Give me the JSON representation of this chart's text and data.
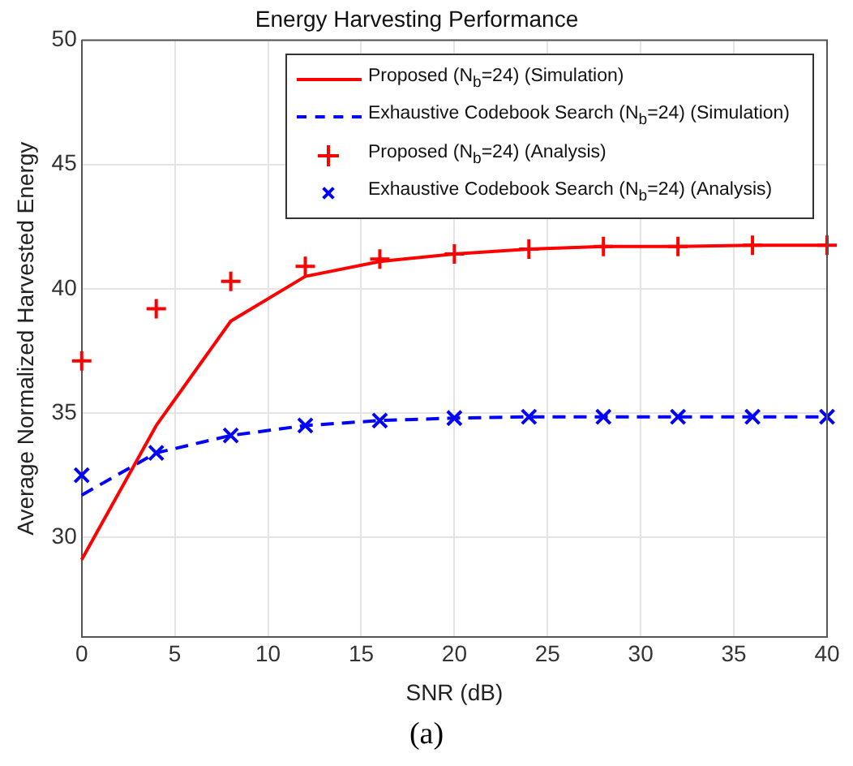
{
  "chart_data": {
    "type": "line",
    "title": "Energy Harvesting Performance",
    "xlabel": "SNR (dB)",
    "ylabel": "Average Normalized Harvested Energy",
    "x": [
      0,
      4,
      8,
      12,
      16,
      20,
      24,
      28,
      32,
      36,
      40
    ],
    "series": [
      {
        "name": "Proposed (N$_{b}$=24) (Simulation)",
        "color": "#ff0000",
        "line_style": "solid",
        "marker": "none",
        "values": [
          29.1,
          34.5,
          38.7,
          40.5,
          41.1,
          41.4,
          41.6,
          41.7,
          41.7,
          41.75,
          41.75
        ]
      },
      {
        "name": "Exhaustive Codebook Search (N$_{b}$=24) (Simulation)",
        "color": "#0000ff",
        "line_style": "dashed",
        "marker": "none",
        "values": [
          31.7,
          33.4,
          34.1,
          34.5,
          34.7,
          34.8,
          34.85,
          34.85,
          34.85,
          34.85,
          34.85
        ]
      },
      {
        "name": "Proposed (N$_{b}$=24) (Analysis)",
        "type": "scatter",
        "color": "#ff0000",
        "marker": "cross",
        "values": [
          37.1,
          39.2,
          40.3,
          40.9,
          41.2,
          41.4,
          41.6,
          41.7,
          41.7,
          41.75,
          41.75
        ]
      },
      {
        "name": "Exhaustive Codebook Search (N$_{b}$=24) (Analysis)",
        "type": "scatter",
        "color": "#0000ff",
        "marker": "x",
        "values": [
          32.5,
          33.4,
          34.1,
          34.5,
          34.7,
          34.8,
          34.85,
          34.85,
          34.85,
          34.85,
          34.85
        ]
      }
    ],
    "xlim": [
      0,
      40
    ],
    "xticks": [
      0,
      5,
      10,
      15,
      20,
      25,
      30,
      35,
      40
    ],
    "ylim": [
      26,
      50
    ],
    "yticks": [
      30,
      35,
      40,
      45,
      50
    ],
    "grid": true,
    "legend": "top right",
    "annotations": [
      "(a)"
    ]
  }
}
